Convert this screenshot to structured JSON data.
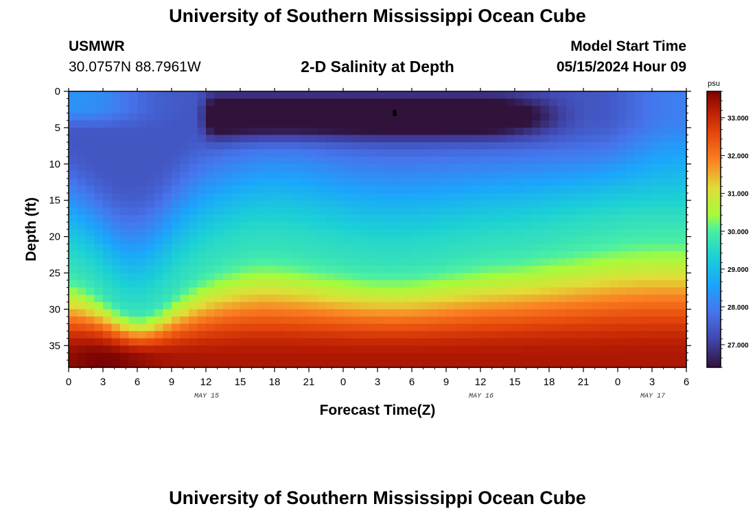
{
  "header": {
    "title": "University of Southern Mississippi Ocean Cube",
    "station": "USMWR",
    "coords": "30.0757N  88.7961W",
    "subtitle": "2-D Salinity at Depth",
    "model_label": "Model Start Time",
    "model_time": "05/15/2024 Hour 09"
  },
  "footer": {
    "title": "University of Southern Mississippi Ocean Cube"
  },
  "chart_data": {
    "type": "heatmap",
    "title": "2-D Salinity at Depth",
    "xlabel": "Forecast Time(Z)",
    "ylabel": "Depth (ft)",
    "x_tick_labels": [
      "0",
      "3",
      "6",
      "9",
      "12",
      "15",
      "18",
      "21",
      "0",
      "3",
      "6",
      "9",
      "12",
      "15",
      "18",
      "21",
      "0",
      "3",
      "6"
    ],
    "x_range_hours": [
      0,
      54
    ],
    "date_labels": [
      {
        "label": "MAY 15",
        "hour": 12
      },
      {
        "label": "MAY 16",
        "hour": 36
      },
      {
        "label": "MAY 17",
        "hour": 51
      }
    ],
    "y_ticks": [
      0,
      5,
      10,
      15,
      20,
      25,
      30,
      35
    ],
    "ylim": [
      0,
      38
    ],
    "y_inverted": true,
    "colorbar": {
      "unit": "psu",
      "ticks": [
        "27.000",
        "28.000",
        "29.000",
        "30.000",
        "31.000",
        "32.000",
        "33.000"
      ],
      "range": [
        26.4,
        33.7
      ]
    },
    "grid": false,
    "marker": {
      "hour": 28.5,
      "depth": 3
    }
  }
}
